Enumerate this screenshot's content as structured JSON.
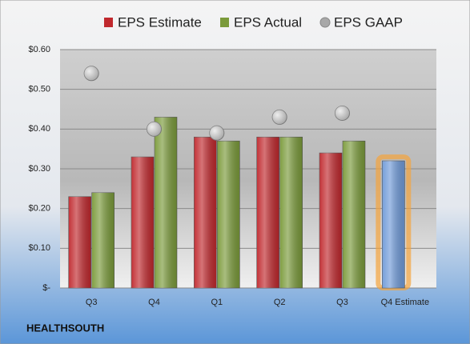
{
  "chart_data": {
    "type": "bar",
    "title": "HEALTHSOUTH",
    "categories": [
      "Q3",
      "Q4",
      "Q1",
      "Q2",
      "Q3",
      "Q4 Estimate"
    ],
    "series": [
      {
        "name": "EPS Estimate",
        "color": "#c0282d",
        "highlight_color": "#6f9ad8",
        "glow_color": "#f5a43c",
        "values": [
          0.23,
          0.33,
          0.38,
          0.38,
          0.34,
          0.32
        ]
      },
      {
        "name": "EPS Actual",
        "color": "#7a9a3a",
        "values": [
          0.24,
          0.43,
          0.37,
          0.38,
          0.37,
          null
        ]
      },
      {
        "name": "EPS GAAP",
        "color": "#a8a8a8",
        "marker": "circle",
        "values": [
          0.54,
          0.4,
          0.39,
          0.43,
          0.44,
          null
        ]
      }
    ],
    "ylim": [
      0,
      0.6
    ],
    "yticks": [
      {
        "value": 0,
        "label": "$-"
      },
      {
        "value": 0.1,
        "label": "$0.10"
      },
      {
        "value": 0.2,
        "label": "$0.20"
      },
      {
        "value": 0.3,
        "label": "$0.30"
      },
      {
        "value": 0.4,
        "label": "$0.40"
      },
      {
        "value": 0.5,
        "label": "$0.50"
      },
      {
        "value": 0.6,
        "label": "$0.60"
      }
    ],
    "grid": true,
    "legend": "top"
  }
}
